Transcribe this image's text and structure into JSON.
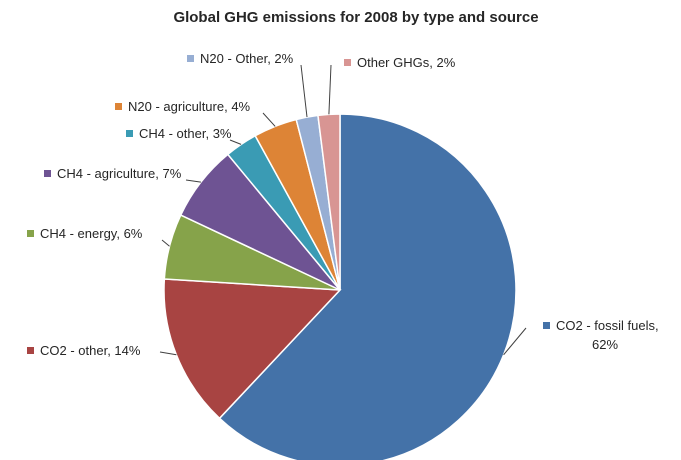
{
  "chart_data": {
    "type": "pie",
    "title": "Global GHG emissions for 2008 by type and source",
    "slices": [
      {
        "label": "CO2 - fossil fuels, 62%",
        "lines": [
          "CO2 - fossil fuels,",
          "62%"
        ],
        "value": 62,
        "color": "#4472A8"
      },
      {
        "label": "CO2 - other, 14%",
        "lines": [
          "CO2 - other, 14%"
        ],
        "value": 14,
        "color": "#A84442"
      },
      {
        "label": "CH4 - energy, 6%",
        "lines": [
          "CH4 - energy, 6%"
        ],
        "value": 6,
        "color": "#86A34A"
      },
      {
        "label": "CH4 - agriculture, 7%",
        "lines": [
          "CH4 - agriculture, 7%"
        ],
        "value": 7,
        "color": "#6E5393"
      },
      {
        "label": "CH4 - other, 3%",
        "lines": [
          "CH4 - other, 3%"
        ],
        "value": 3,
        "color": "#3A9BB4"
      },
      {
        "label": "N20 - agriculture, 4%",
        "lines": [
          "N20 - agriculture, 4%"
        ],
        "value": 4,
        "color": "#DD8436"
      },
      {
        "label": "N20 - Other, 2%",
        "lines": [
          "N20 - Other, 2%"
        ],
        "value": 2,
        "color": "#97AED3"
      },
      {
        "label": "Other GHGs, 2%",
        "lines": [
          "Other GHGs, 2%"
        ],
        "value": 2,
        "color": "#D89593"
      }
    ]
  }
}
